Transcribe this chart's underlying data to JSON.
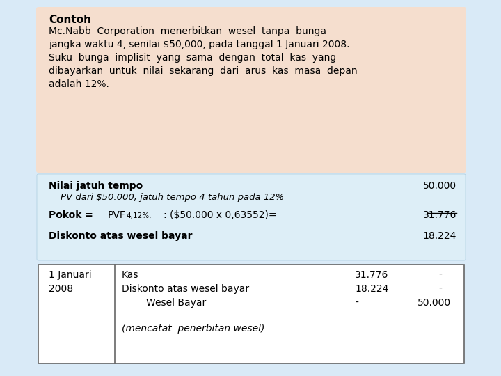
{
  "bg_color": "#d9eaf7",
  "header_bg": "#f5dece",
  "table_bg": "#ddeef7",
  "journal_bg": "#ffffff",
  "title": "Contoh",
  "para_line1": "Mc.Nabb  Corporation  menerbitkan  wesel  tanpa  bunga",
  "para_line2": "jangka waktu 4, senilai $50,000, pada tanggal 1 Januari 2008.",
  "para_line3": "Suku  bunga  implisit  yang  sama  dengan  total  kas  yang",
  "para_line4": "dibayarkan  untuk  nilai  sekarang  dari  arus  kas  masa  depan",
  "para_line5": "adalah 12%.",
  "row1_label": "Nilai jatuh tempo",
  "row1_sub": "    PV dari $50.000, jatuh tempo 4 tahun pada 12%",
  "row1_value": "50.000",
  "row2_label": "Pokok =",
  "row2_pvf": "PVF",
  "row2_sub_pvf": "4,12%,",
  "row2_calc": ": ($50.000 x 0,63552)=",
  "row2_value": "31.776",
  "row3_label": "Diskonto atas wesel bayar",
  "row3_value": "18.224",
  "journal_date1": "1 Januari",
  "journal_date2": "2008",
  "journal_line1_desc": "Kas",
  "journal_line1_debit": "31.776",
  "journal_line1_credit": "-",
  "journal_line2_desc": "Diskonto atas wesel bayar",
  "journal_line2_debit": "18.224",
  "journal_line2_credit": "-",
  "journal_line3_desc": "        Wesel Bayar",
  "journal_line3_debit": "-",
  "journal_line3_credit": "50.000",
  "journal_note": "(mencatat  penerbitan wesel)"
}
